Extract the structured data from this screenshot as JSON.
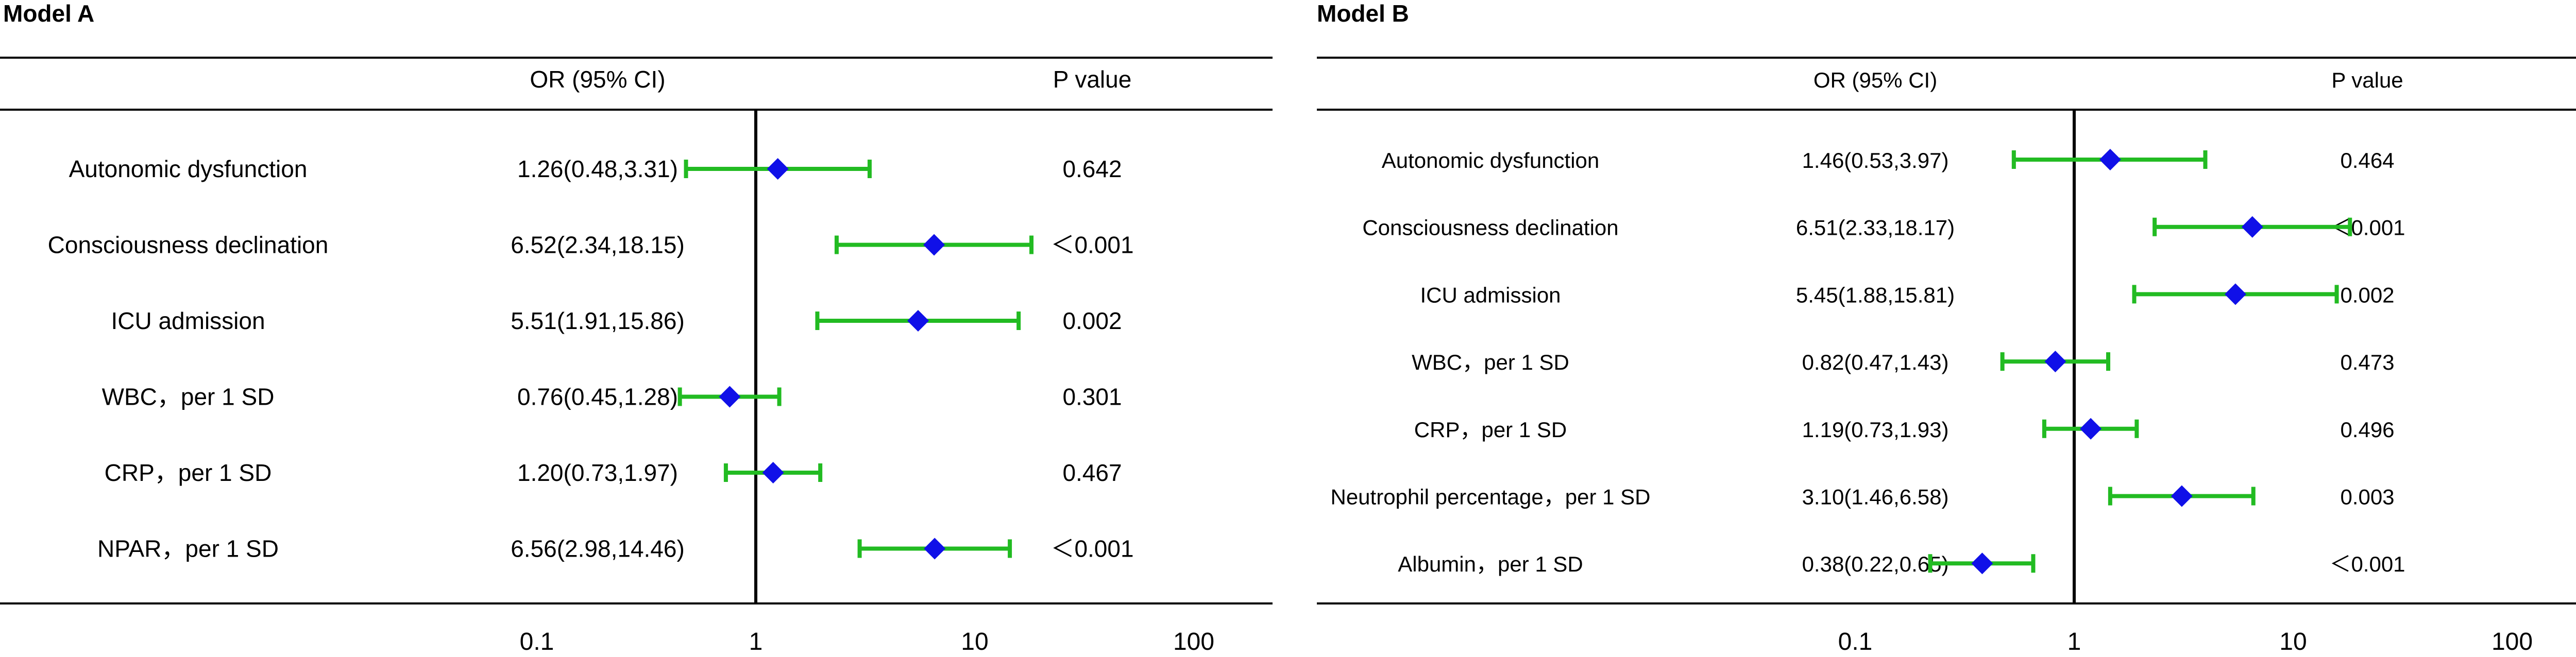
{
  "chart_data": [
    {
      "type": "forest",
      "title": "Model A",
      "columns": {
        "or_header": "OR (95% CI)",
        "p_header": "P value"
      },
      "x_scale": "log",
      "xlim": [
        0.1,
        100
      ],
      "ref_line": 1,
      "xticks": [
        "0.1",
        "1",
        "10",
        "100"
      ],
      "colors": {
        "marker": "#1010e8",
        "ci": "#22bb22",
        "axis": "#000000"
      },
      "rows": [
        {
          "label": "Autonomic dysfunction",
          "or_text": "1.26(0.48,3.31)",
          "p": "0.642",
          "or": 1.26,
          "lo": 0.48,
          "hi": 3.31
        },
        {
          "label": "Consciousness declination",
          "or_text": "6.52(2.34,18.15)",
          "p": "＜0.001",
          "or": 6.52,
          "lo": 2.34,
          "hi": 18.15
        },
        {
          "label": "ICU admission",
          "or_text": "5.51(1.91,15.86)",
          "p": "0.002",
          "or": 5.51,
          "lo": 1.91,
          "hi": 15.86
        },
        {
          "label": "WBC，per 1 SD",
          "or_text": "0.76(0.45,1.28)",
          "p": "0.301",
          "or": 0.76,
          "lo": 0.45,
          "hi": 1.28
        },
        {
          "label": "CRP，per 1 SD",
          "or_text": "1.20(0.73,1.97)",
          "p": "0.467",
          "or": 1.2,
          "lo": 0.73,
          "hi": 1.97
        },
        {
          "label": "NPAR，per 1 SD",
          "or_text": "6.56(2.98,14.46)",
          "p": "＜0.001",
          "or": 6.56,
          "lo": 2.98,
          "hi": 14.46
        }
      ]
    },
    {
      "type": "forest",
      "title": "Model B",
      "columns": {
        "or_header": "OR (95% CI)",
        "p_header": "P value"
      },
      "x_scale": "log",
      "xlim": [
        0.1,
        100
      ],
      "ref_line": 1,
      "xticks": [
        "0.1",
        "1",
        "10",
        "100"
      ],
      "colors": {
        "marker": "#1010e8",
        "ci": "#22bb22",
        "axis": "#000000"
      },
      "rows": [
        {
          "label": "Autonomic dysfunction",
          "or_text": "1.46(0.53,3.97)",
          "p": "0.464",
          "or": 1.46,
          "lo": 0.53,
          "hi": 3.97
        },
        {
          "label": "Consciousness declination",
          "or_text": "6.51(2.33,18.17)",
          "p": "＜0.001",
          "or": 6.51,
          "lo": 2.33,
          "hi": 18.17
        },
        {
          "label": "ICU admission",
          "or_text": "5.45(1.88,15.81)",
          "p": "0.002",
          "or": 5.45,
          "lo": 1.88,
          "hi": 15.81
        },
        {
          "label": "WBC，per 1 SD",
          "or_text": "0.82(0.47,1.43)",
          "p": "0.473",
          "or": 0.82,
          "lo": 0.47,
          "hi": 1.43
        },
        {
          "label": "CRP，per 1 SD",
          "or_text": "1.19(0.73,1.93)",
          "p": "0.496",
          "or": 1.19,
          "lo": 0.73,
          "hi": 1.93
        },
        {
          "label": "Neutrophil percentage，per 1 SD",
          "or_text": "3.10(1.46,6.58)",
          "p": "0.003",
          "or": 3.1,
          "lo": 1.46,
          "hi": 6.58
        },
        {
          "label": "Albumin，per 1 SD",
          "or_text": "0.38(0.22,0.65)",
          "p": "＜0.001",
          "or": 0.38,
          "lo": 0.22,
          "hi": 0.65
        }
      ]
    }
  ]
}
